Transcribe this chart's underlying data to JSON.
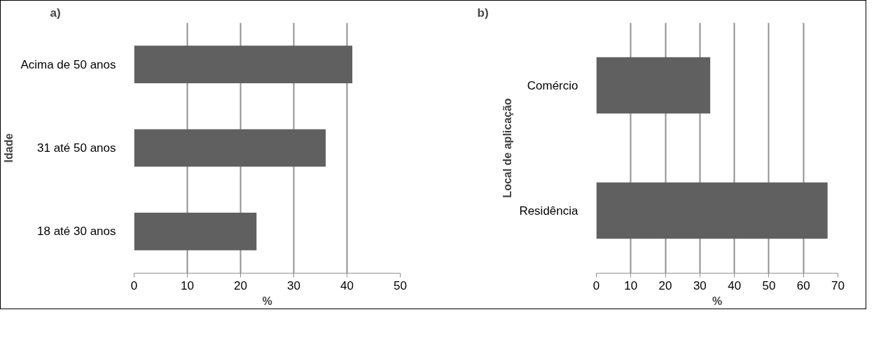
{
  "chart_data": [
    {
      "type": "bar",
      "orientation": "horizontal",
      "title": "a)",
      "ylabel": "Idade",
      "xlabel": "%",
      "categories": [
        "Acima de 50 anos",
        "31 até 50 anos",
        "18 até 30 anos"
      ],
      "values": [
        41,
        36,
        23
      ],
      "color": "#606060",
      "xlim": [
        0,
        50
      ],
      "xticks": [
        0,
        10,
        20,
        30,
        40,
        50
      ],
      "grid": "x"
    },
    {
      "type": "bar",
      "orientation": "horizontal",
      "title": "b)",
      "ylabel": "Local de aplicação",
      "xlabel": "%",
      "categories": [
        "Comércio",
        "Residência"
      ],
      "values": [
        33,
        67
      ],
      "color": "#606060",
      "xlim": [
        0,
        70
      ],
      "xticks": [
        0,
        10,
        20,
        30,
        40,
        50,
        60,
        70
      ],
      "grid": "x"
    }
  ]
}
